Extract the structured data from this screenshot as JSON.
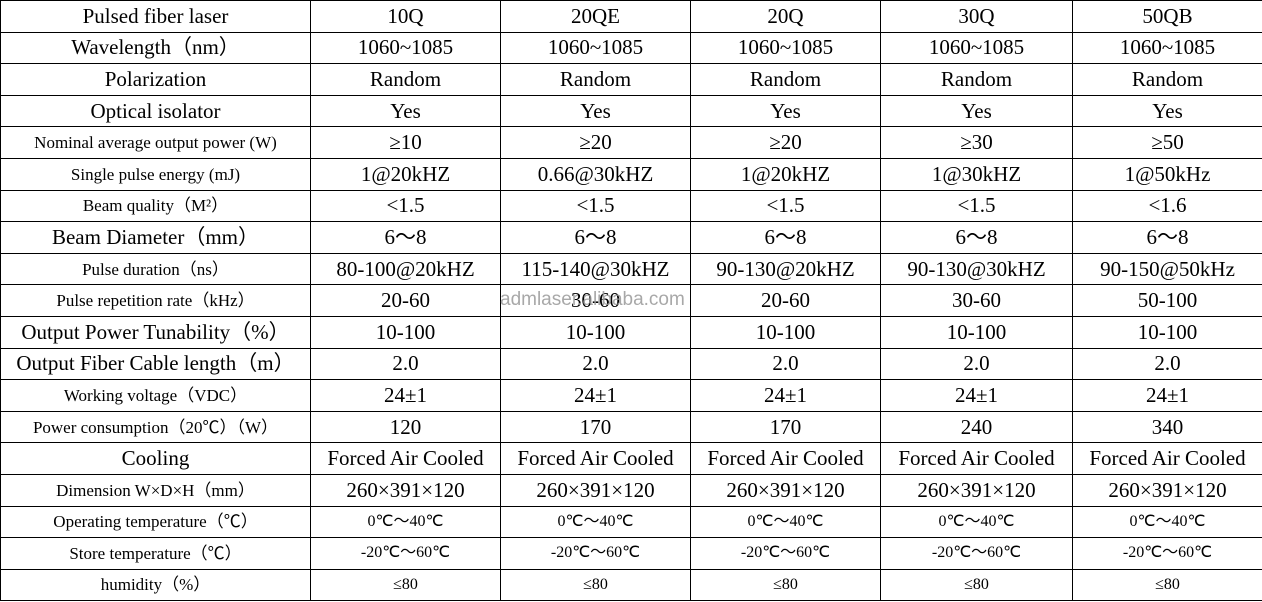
{
  "table": {
    "header": [
      "Pulsed fiber laser",
      "10Q",
      "20QE",
      "20Q",
      "30Q",
      "50QB"
    ],
    "rows": [
      [
        "Wavelength（nm）",
        "1060~1085",
        "1060~1085",
        "1060~1085",
        "1060~1085",
        "1060~1085"
      ],
      [
        "Polarization",
        "Random",
        "Random",
        "Random",
        "Random",
        "Random"
      ],
      [
        "Optical isolator",
        "Yes",
        "Yes",
        "Yes",
        "Yes",
        "Yes"
      ],
      [
        "Nominal average output power (W)",
        "≥10",
        "≥20",
        "≥20",
        "≥30",
        "≥50"
      ],
      [
        "Single pulse energy (mJ)",
        "1@20kHZ",
        "0.66@30kHZ",
        "1@20kHZ",
        "1@30kHZ",
        "1@50kHz"
      ],
      [
        "Beam quality（M²）",
        "<1.5",
        "<1.5",
        "<1.5",
        "<1.5",
        "<1.6"
      ],
      [
        "Beam Diameter（mm）",
        "6～8",
        "6～8",
        "6～8",
        "6～8",
        "6～8"
      ],
      [
        "Pulse duration（ns）",
        "80-100@20kHZ",
        "115-140@30kHZ",
        "90-130@20kHZ",
        "90-130@30kHZ",
        "90-150@50kHz"
      ],
      [
        "Pulse repetition rate（kHz）",
        "20-60",
        "30-60",
        "20-60",
        "30-60",
        "50-100"
      ],
      [
        "Output Power Tunability（%）",
        "10-100",
        "10-100",
        "10-100",
        "10-100",
        "10-100"
      ],
      [
        "Output Fiber Cable length（m）",
        "2.0",
        "2.0",
        "2.0",
        "2.0",
        "2.0"
      ],
      [
        "Working voltage（VDC）",
        "24±1",
        "24±1",
        "24±1",
        "24±1",
        "24±1"
      ],
      [
        "Power consumption（20℃）（W）",
        "120",
        "170",
        "170",
        "240",
        "340"
      ],
      [
        "Cooling",
        "Forced Air Cooled",
        "Forced Air Cooled",
        "Forced Air Cooled",
        "Forced Air Cooled",
        "Forced Air Cooled"
      ],
      [
        "Dimension W×D×H（mm）",
        "260×391×120",
        "260×391×120",
        "260×391×120",
        "260×391×120",
        "260×391×120"
      ],
      [
        "Operating temperature（℃）",
        "0℃～40℃",
        "0℃～40℃",
        "0℃～40℃",
        "0℃～40℃",
        "0℃～40℃"
      ],
      [
        "Store temperature（℃）",
        "-20℃～60℃",
        "-20℃～60℃",
        "-20℃～60℃",
        "-20℃～60℃",
        "-20℃～60℃"
      ],
      [
        "humidity（%）",
        "≤80",
        "≤80",
        "≤80",
        "≤80",
        "≤80"
      ]
    ]
  },
  "watermark": "admlaser.alibaba.com"
}
